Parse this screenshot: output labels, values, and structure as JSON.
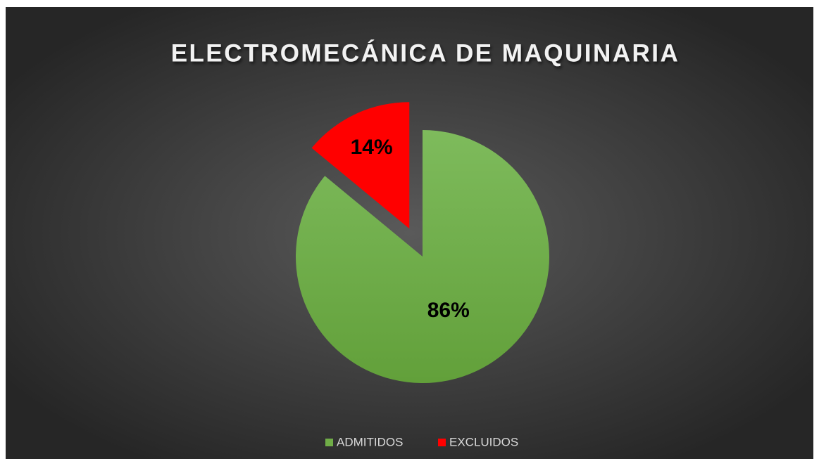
{
  "chart_data": {
    "type": "pie",
    "title": "ELECTROMECÁNICA DE MAQUINARIA",
    "categories": [
      "ADMITIDOS",
      "EXCLUIDOS"
    ],
    "values": [
      86,
      14
    ],
    "value_labels": [
      "86%",
      "14%"
    ],
    "colors": [
      "#70ad47",
      "#ff0000"
    ],
    "legend": "bottom"
  }
}
